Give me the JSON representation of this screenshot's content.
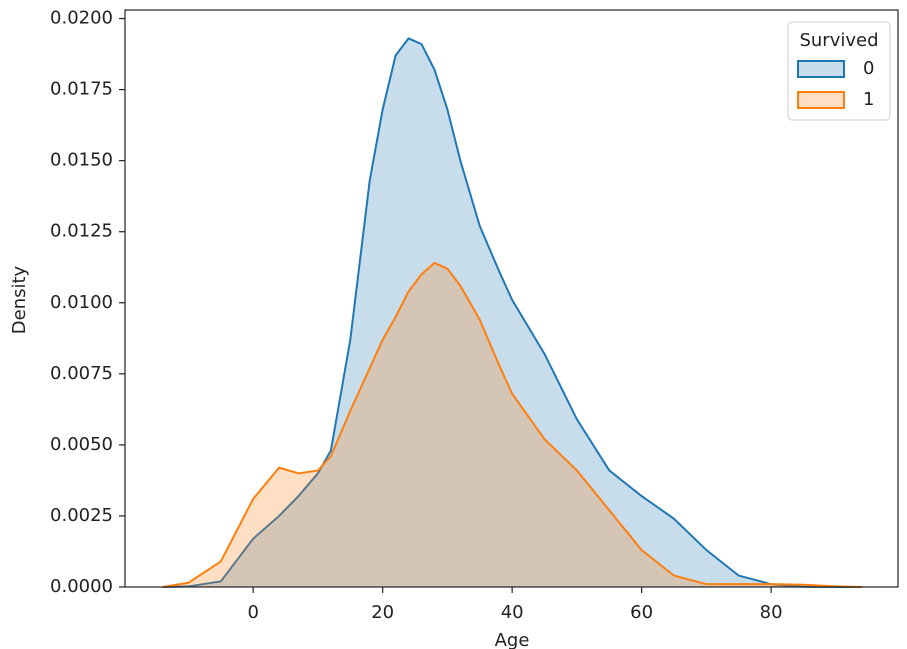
{
  "chart_data": {
    "type": "kde",
    "xlabel": "Age",
    "ylabel": "Density",
    "x": [
      -14,
      -10,
      -5,
      0,
      4,
      7,
      10,
      12,
      15,
      18,
      20,
      22,
      24,
      26,
      28,
      30,
      32,
      35,
      38,
      40,
      45,
      50,
      55,
      60,
      65,
      70,
      75,
      80,
      85,
      90,
      94
    ],
    "series": [
      {
        "name": "0",
        "color": "#1f77b4",
        "values": [
          0,
          2e-05,
          0.0002,
          0.0017,
          0.0025,
          0.0032,
          0.004,
          0.0048,
          0.0087,
          0.0143,
          0.0168,
          0.0187,
          0.0193,
          0.0191,
          0.0182,
          0.0168,
          0.015,
          0.0127,
          0.0111,
          0.0101,
          0.0082,
          0.0059,
          0.0041,
          0.0032,
          0.0024,
          0.0013,
          0.0004,
          0.0001,
          1e-05,
          0,
          0
        ]
      },
      {
        "name": "1",
        "color": "#ff7f0e",
        "values": [
          0,
          0.00015,
          0.0009,
          0.0031,
          0.0042,
          0.004,
          0.0041,
          0.0046,
          0.0062,
          0.0077,
          0.0087,
          0.0095,
          0.0104,
          0.011,
          0.0114,
          0.0112,
          0.0106,
          0.0094,
          0.0078,
          0.0068,
          0.0052,
          0.0041,
          0.0027,
          0.0013,
          0.0004,
          0.0001,
          0.0001,
          0.0001,
          8e-05,
          2e-05,
          0
        ]
      }
    ],
    "legend_title": "Survived",
    "legend_position": "upper right",
    "xlim": [
      -19.8,
      99.6
    ],
    "ylim": [
      0,
      0.0203
    ],
    "xticks": [
      0,
      20,
      40,
      60,
      80
    ],
    "yticks": [
      {
        "value": 0,
        "label": "0.0000"
      },
      {
        "value": 0.0025,
        "label": "0.0025"
      },
      {
        "value": 0.005,
        "label": "0.0050"
      },
      {
        "value": 0.0075,
        "label": "0.0075"
      },
      {
        "value": 0.01,
        "label": "0.0100"
      },
      {
        "value": 0.0125,
        "label": "0.0125"
      },
      {
        "value": 0.015,
        "label": "0.0150"
      },
      {
        "value": 0.0175,
        "label": "0.0175"
      },
      {
        "value": 0.02,
        "label": "0.0200"
      }
    ]
  }
}
